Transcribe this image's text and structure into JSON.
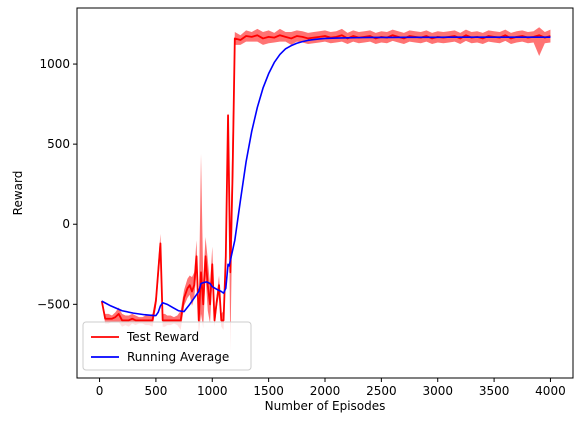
{
  "chart_data": {
    "type": "line",
    "title": "",
    "xlabel": "Number of Episodes",
    "ylabel": "Reward",
    "xlim": [
      -200,
      4200
    ],
    "ylim": [
      -960,
      1350
    ],
    "xticks": [
      0,
      500,
      1000,
      1500,
      2000,
      2500,
      3000,
      3500,
      4000
    ],
    "yticks": [
      -500,
      0,
      500,
      1000
    ],
    "grid": false,
    "legend": {
      "position": "lower left"
    },
    "series": [
      {
        "name": "Test Reward",
        "color": "#ff0000",
        "band_color": "#ff0000",
        "x": [
          20,
          50,
          80,
          110,
          140,
          170,
          200,
          230,
          260,
          290,
          320,
          350,
          380,
          410,
          440,
          470,
          500,
          520,
          540,
          560,
          580,
          600,
          630,
          660,
          690,
          720,
          750,
          780,
          800,
          820,
          840,
          860,
          880,
          900,
          920,
          940,
          960,
          980,
          1000,
          1020,
          1040,
          1060,
          1080,
          1100,
          1120,
          1140,
          1160,
          1180,
          1200,
          1250,
          1300,
          1350,
          1400,
          1450,
          1500,
          1550,
          1600,
          1650,
          1700,
          1750,
          1800,
          1850,
          1900,
          1950,
          2000,
          2050,
          2100,
          2150,
          2200,
          2250,
          2300,
          2350,
          2400,
          2450,
          2500,
          2550,
          2600,
          2650,
          2700,
          2750,
          2800,
          2850,
          2900,
          2950,
          3000,
          3050,
          3100,
          3150,
          3200,
          3250,
          3300,
          3350,
          3400,
          3450,
          3500,
          3550,
          3600,
          3650,
          3700,
          3750,
          3800,
          3850,
          3900,
          3950,
          4000
        ],
        "mean": [
          -480,
          -590,
          -590,
          -590,
          -580,
          -560,
          -600,
          -600,
          -600,
          -590,
          -600,
          -600,
          -600,
          -600,
          -600,
          -600,
          -480,
          -300,
          -120,
          -600,
          -600,
          -600,
          -600,
          -600,
          -600,
          -600,
          -460,
          -400,
          -380,
          -420,
          -380,
          -200,
          -600,
          -300,
          -500,
          -200,
          -380,
          -500,
          -250,
          -600,
          -480,
          -380,
          -600,
          -600,
          -200,
          680,
          -300,
          300,
          1160,
          1150,
          1175,
          1170,
          1180,
          1160,
          1170,
          1165,
          1180,
          1170,
          1160,
          1175,
          1170,
          1160,
          1165,
          1170,
          1175,
          1165,
          1170,
          1180,
          1160,
          1175,
          1165,
          1170,
          1175,
          1160,
          1170,
          1165,
          1180,
          1170,
          1160,
          1175,
          1170,
          1165,
          1175,
          1160,
          1170,
          1165,
          1170,
          1175,
          1160,
          1180,
          1165,
          1170,
          1160,
          1175,
          1170,
          1165,
          1180,
          1160,
          1170,
          1175,
          1165,
          1170,
          1180,
          1165,
          1175
        ],
        "upper": [
          -470,
          -560,
          -560,
          -570,
          -550,
          -520,
          -560,
          -570,
          -570,
          -560,
          -570,
          -580,
          -580,
          -570,
          -570,
          -560,
          -440,
          -240,
          -60,
          -560,
          -560,
          -570,
          -570,
          -580,
          -570,
          -540,
          -410,
          -340,
          -320,
          -330,
          -300,
          -100,
          -500,
          440,
          -350,
          -80,
          -220,
          -380,
          -140,
          -560,
          -440,
          -320,
          -560,
          -540,
          -100,
          700,
          -150,
          600,
          1200,
          1180,
          1210,
          1200,
          1220,
          1200,
          1210,
          1195,
          1220,
          1200,
          1200,
          1210,
          1205,
          1195,
          1200,
          1205,
          1210,
          1200,
          1205,
          1220,
          1195,
          1210,
          1200,
          1205,
          1210,
          1195,
          1205,
          1200,
          1215,
          1205,
          1195,
          1210,
          1205,
          1200,
          1210,
          1195,
          1205,
          1200,
          1205,
          1210,
          1195,
          1215,
          1200,
          1205,
          1195,
          1210,
          1205,
          1200,
          1215,
          1195,
          1205,
          1210,
          1200,
          1205,
          1230,
          1200,
          1215
        ],
        "lower": [
          -490,
          -620,
          -620,
          -610,
          -610,
          -610,
          -640,
          -630,
          -640,
          -620,
          -630,
          -620,
          -620,
          -630,
          -630,
          -640,
          -520,
          -360,
          -180,
          -640,
          -640,
          -630,
          -630,
          -620,
          -630,
          -660,
          -510,
          -460,
          -440,
          -510,
          -460,
          -300,
          -700,
          -560,
          -650,
          -320,
          -540,
          -620,
          -360,
          -640,
          -520,
          -440,
          -640,
          -660,
          -300,
          660,
          -800,
          100,
          1120,
          1120,
          1140,
          1140,
          1140,
          1120,
          1130,
          1135,
          1140,
          1140,
          1120,
          1140,
          1135,
          1125,
          1130,
          1135,
          1140,
          1130,
          1135,
          1140,
          1125,
          1140,
          1130,
          1135,
          1140,
          1125,
          1135,
          1130,
          1145,
          1135,
          1125,
          1140,
          1135,
          1130,
          1140,
          1125,
          1135,
          1130,
          1135,
          1140,
          1125,
          1145,
          1130,
          1135,
          1125,
          1140,
          1135,
          1130,
          1145,
          1125,
          1135,
          1140,
          1130,
          1135,
          1050,
          1130,
          1135
        ]
      },
      {
        "name": "Running Average",
        "color": "#0000ff",
        "x": [
          20,
          100,
          200,
          300,
          400,
          480,
          500,
          520,
          540,
          560,
          600,
          650,
          700,
          750,
          800,
          850,
          880,
          900,
          920,
          950,
          980,
          1000,
          1050,
          1080,
          1100,
          1120,
          1140,
          1150,
          1200,
          1250,
          1300,
          1350,
          1400,
          1450,
          1500,
          1550,
          1600,
          1650,
          1700,
          1750,
          1800,
          1850,
          1900,
          1950,
          2000,
          2100,
          2200,
          2300,
          2400,
          2500,
          2600,
          2700,
          2800,
          2900,
          3000,
          3100,
          3200,
          3300,
          3400,
          3500,
          3600,
          3700,
          3800,
          3900,
          4000
        ],
        "values": [
          -480,
          -510,
          -540,
          -555,
          -565,
          -570,
          -570,
          -550,
          -510,
          -490,
          -500,
          -520,
          -540,
          -545,
          -500,
          -450,
          -420,
          -370,
          -365,
          -360,
          -370,
          -390,
          -410,
          -420,
          -430,
          -400,
          -250,
          -260,
          -100,
          150,
          390,
          580,
          730,
          850,
          940,
          1010,
          1060,
          1095,
          1115,
          1130,
          1140,
          1148,
          1153,
          1157,
          1160,
          1162,
          1164,
          1165,
          1166,
          1166,
          1166,
          1167,
          1167,
          1167,
          1167,
          1168,
          1168,
          1168,
          1168,
          1168,
          1168,
          1168,
          1168,
          1168,
          1168
        ]
      }
    ]
  }
}
